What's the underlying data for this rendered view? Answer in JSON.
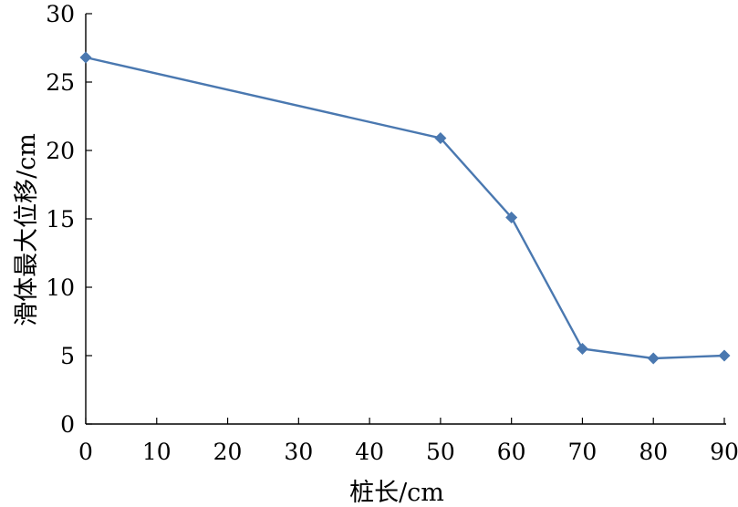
{
  "chart_data": {
    "type": "line",
    "title": "",
    "xlabel": "桩长/cm",
    "ylabel": "滑体最大位移/cm",
    "x_categories": [
      "0",
      "10",
      "20",
      "30",
      "40",
      "50",
      "60",
      "70",
      "80",
      "90"
    ],
    "y_ticks": [
      "0",
      "5",
      "10",
      "15",
      "20",
      "25",
      "30"
    ],
    "ylim": [
      0,
      30
    ],
    "grid": false,
    "legend": "none",
    "series": [
      {
        "marker": "diamond",
        "color": "#4a78b0",
        "points": [
          {
            "x": "0",
            "y": 26.8
          },
          {
            "x": "50",
            "y": 20.9
          },
          {
            "x": "60",
            "y": 15.1
          },
          {
            "x": "70",
            "y": 5.5
          },
          {
            "x": "80",
            "y": 4.8
          },
          {
            "x": "90",
            "y": 5.0
          }
        ]
      }
    ]
  }
}
